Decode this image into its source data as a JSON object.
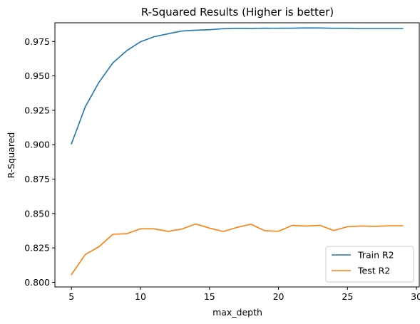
{
  "chart_data": {
    "type": "line",
    "title": "R-Squared Results (Higher is better)",
    "xlabel": "max_depth",
    "ylabel": "R-Squared",
    "xlim": [
      3.8,
      30.2
    ],
    "ylim": [
      0.7966,
      0.9886
    ],
    "xticks": [
      5,
      10,
      15,
      20,
      25,
      30
    ],
    "xtick_labels": [
      "5",
      "10",
      "15",
      "20",
      "25",
      "30"
    ],
    "yticks": [
      0.8,
      0.825,
      0.85,
      0.875,
      0.9,
      0.925,
      0.95,
      0.975
    ],
    "ytick_labels": [
      "0.800",
      "0.825",
      "0.850",
      "0.875",
      "0.900",
      "0.925",
      "0.950",
      "0.975"
    ],
    "grid": false,
    "legend_position": "bottom-right",
    "x": [
      5,
      6,
      7,
      8,
      9,
      10,
      11,
      12,
      13,
      14,
      15,
      16,
      17,
      18,
      19,
      20,
      21,
      22,
      23,
      24,
      25,
      26,
      27,
      28,
      29
    ],
    "series": [
      {
        "name": "Train R2",
        "color": "#1f77b4",
        "values": [
          0.9007,
          0.9275,
          0.9455,
          0.9595,
          0.9683,
          0.9748,
          0.9785,
          0.9806,
          0.9826,
          0.9832,
          0.9836,
          0.9843,
          0.9846,
          0.9845,
          0.9847,
          0.9846,
          0.9847,
          0.9849,
          0.9848,
          0.9846,
          0.9846,
          0.9844,
          0.9844,
          0.9844,
          0.9844
        ]
      },
      {
        "name": "Test R2",
        "color": "#ff7f0e",
        "values": [
          0.8056,
          0.8202,
          0.8259,
          0.8349,
          0.8353,
          0.8389,
          0.8388,
          0.837,
          0.8387,
          0.8424,
          0.8394,
          0.8369,
          0.8399,
          0.8422,
          0.8375,
          0.8371,
          0.8414,
          0.8409,
          0.8414,
          0.8376,
          0.8404,
          0.8409,
          0.8406,
          0.8411,
          0.8411
        ]
      }
    ]
  }
}
